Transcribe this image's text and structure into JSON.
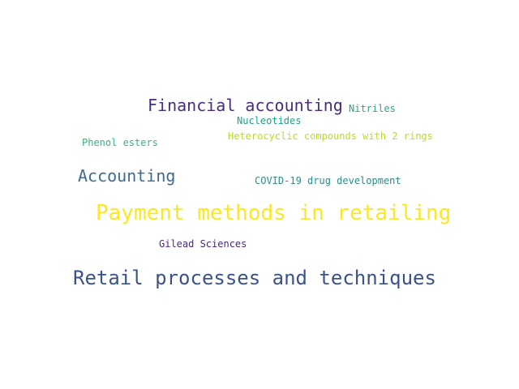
{
  "word_cloud": {
    "words": [
      {
        "text": "Payment methods in retailing",
        "color": "#fde725"
      },
      {
        "text": "Retail processes and techniques",
        "color": "#3b528b"
      },
      {
        "text": "Financial accounting",
        "color": "#472d7b"
      },
      {
        "text": "Accounting",
        "color": "#3e6b8e"
      },
      {
        "text": "COVID-19 drug development",
        "color": "#2c8c8a"
      },
      {
        "text": "Heterocyclic compounds with 2 rings",
        "color": "#b5de2b"
      },
      {
        "text": "Phenol esters",
        "color": "#35b779"
      },
      {
        "text": "Nucleotides",
        "color": "#1f9e89"
      },
      {
        "text": "Nitriles",
        "color": "#26a584"
      },
      {
        "text": "Gilead Sciences",
        "color": "#482878"
      }
    ]
  }
}
